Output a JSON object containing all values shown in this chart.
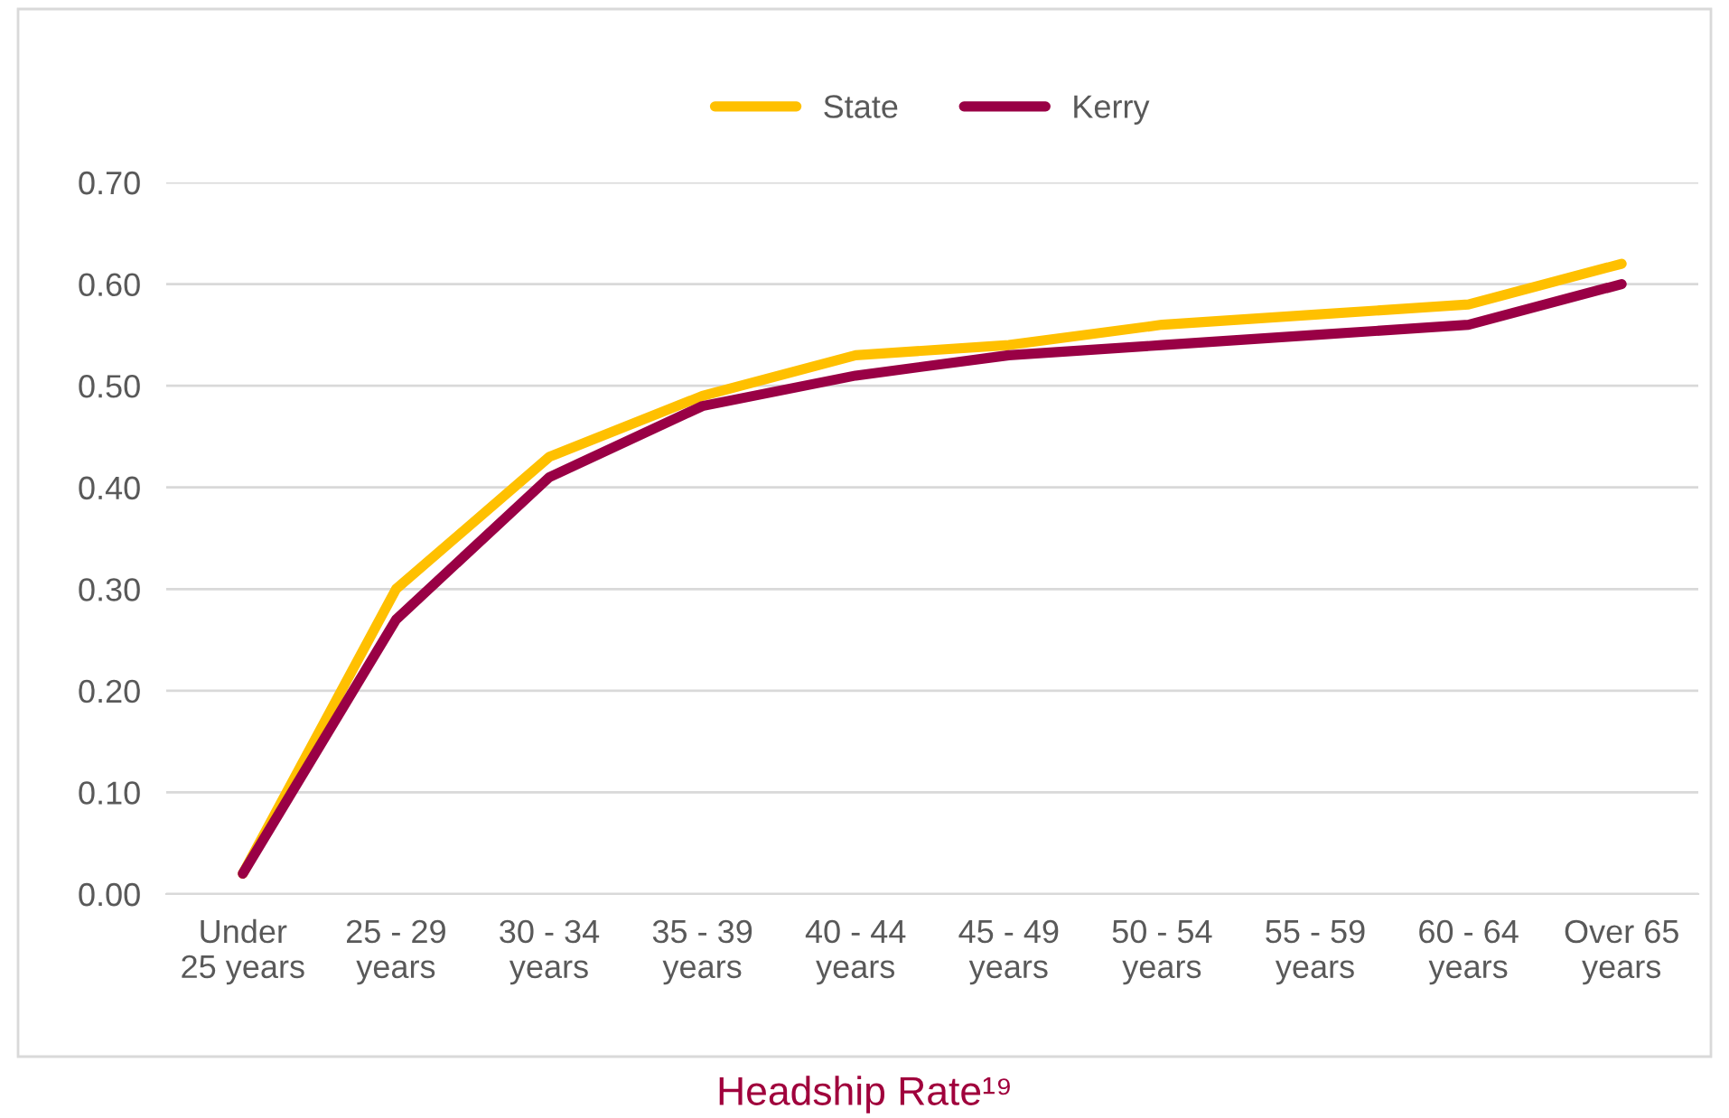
{
  "chart_data": {
    "type": "line",
    "title": "Headship Rate¹⁹",
    "categories": [
      "Under\n25 years",
      "25 - 29\nyears",
      "30 - 34\nyears",
      "35 - 39\nyears",
      "40 - 44\nyears",
      "45 - 49\nyears",
      "50 - 54\nyears",
      "55 - 59\nyears",
      "60 - 64\nyears",
      "Over 65\nyears"
    ],
    "series": [
      {
        "name": "State",
        "color": "#ffc000",
        "values": [
          0.02,
          0.3,
          0.43,
          0.49,
          0.53,
          0.54,
          0.56,
          0.57,
          0.58,
          0.62
        ]
      },
      {
        "name": "Kerry",
        "color": "#990045",
        "values": [
          0.02,
          0.27,
          0.41,
          0.48,
          0.51,
          0.53,
          0.54,
          0.55,
          0.56,
          0.6
        ]
      }
    ],
    "ylim": [
      0,
      0.7
    ],
    "yticks": [
      {
        "value": 0,
        "label": "0.00"
      },
      {
        "value": 0.1,
        "label": "0.10"
      },
      {
        "value": 0.2,
        "label": "0.20"
      },
      {
        "value": 0.3,
        "label": "0.30"
      },
      {
        "value": 0.4,
        "label": "0.40"
      },
      {
        "value": 0.5,
        "label": "0.50"
      },
      {
        "value": 0.6,
        "label": "0.60"
      },
      {
        "value": 0.7,
        "label": "0.70"
      }
    ],
    "grid": "y",
    "legend": "top",
    "marker": "none",
    "line_style": "solid"
  }
}
